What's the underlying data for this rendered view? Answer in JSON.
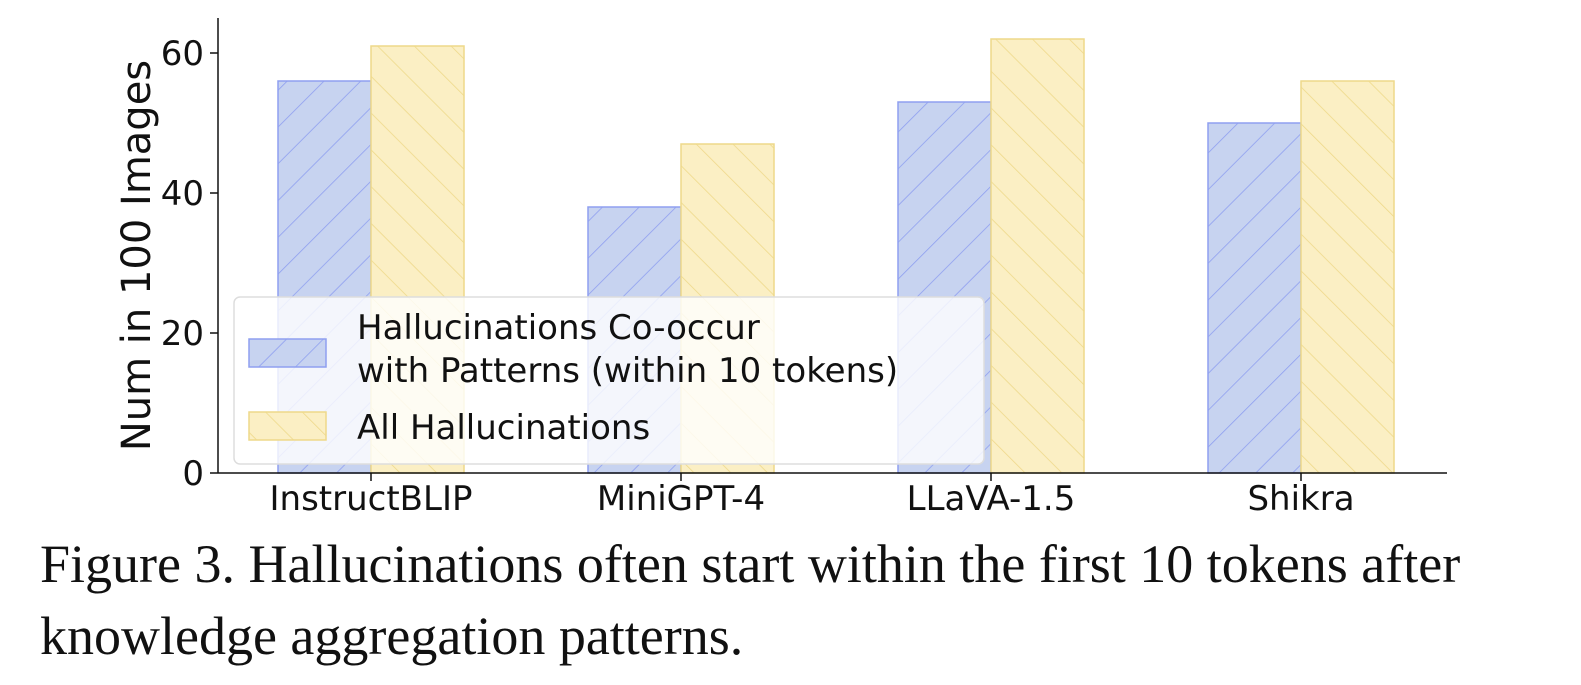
{
  "chart_data": {
    "type": "bar",
    "categories": [
      "InstructBLIP",
      "MiniGPT-4",
      "LLaVA-1.5",
      "Shikra"
    ],
    "series": [
      {
        "name": "Hallucinations Co-occur with Patterns (within 10 tokens)",
        "values": [
          56,
          38,
          53,
          50
        ],
        "color": "#c7d3f0",
        "edge": "#8f9ff0",
        "hatch": "\\\\"
      },
      {
        "name": "All Hallucinations",
        "values": [
          61,
          47,
          62,
          56
        ],
        "color": "#fbefc4",
        "edge": "#eed98a",
        "hatch": "//"
      }
    ],
    "legend_lines": [
      [
        "Hallucinations Co-occur",
        "with Patterns (within 10 tokens)"
      ],
      [
        "All Hallucinations"
      ]
    ],
    "ylabel": "Num in 100 Images",
    "xlabel": "",
    "ylim": [
      0,
      65
    ],
    "yticks": [
      0,
      20,
      40,
      60
    ],
    "grid": false,
    "legend_position": "lower-left"
  },
  "caption": "Figure 3. Hallucinations often start within the first 10 tokens after knowledge aggregation patterns."
}
